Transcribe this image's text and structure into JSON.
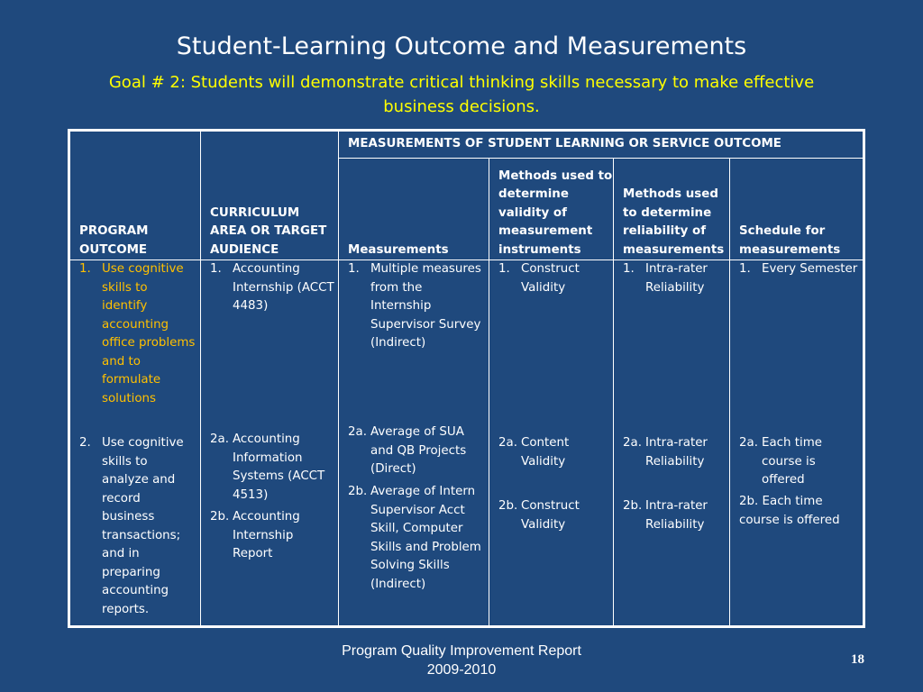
{
  "title": "Student-Learning Outcome and Measurements",
  "goal": "Goal # 2:  Students will demonstrate critical thinking skills necessary to make effective business decisions.",
  "table": {
    "group_header": "MEASUREMENTS OF STUDENT LEARNING OR SERVICE OUTCOME",
    "col1_header": "PROGRAM OUTCOME",
    "col2_header": "CURRICULUM AREA OR TARGET AUDIENCE",
    "col3_header": "Measurements",
    "col4_header": "Methods used to determine validity of measurement instruments",
    "col5_header": "Methods used to determine reliability of measurements",
    "col6_header": "Schedule for measurements",
    "outcome1": {
      "num": "1.",
      "text": "Use cognitive skills to identify accounting office problems and to formulate solutions"
    },
    "outcome2": {
      "num": "2.",
      "text": "Use cognitive skills to analyze and record business transactions; and in preparing accounting reports."
    },
    "curr1": {
      "num": "1.",
      "text": "Accounting Internship (ACCT 4483)"
    },
    "curr2a": {
      "num": "2a.",
      "text": "Accounting Information Systems (ACCT 4513)"
    },
    "curr2b": {
      "num": "2b.",
      "text": "Accounting Internship Report"
    },
    "meas1": {
      "num": "1.",
      "text": "Multiple measures from the Internship Supervisor Survey (Indirect)"
    },
    "meas2a": {
      "num": "2a.",
      "text": "Average  of SUA and QB Projects (Direct)"
    },
    "meas2b": {
      "num": "2b.",
      "text": "Average of Intern Supervisor  Acct Skill, Computer Skills and Problem Solving Skills (Indirect)"
    },
    "val1": {
      "num": "1.",
      "text": "Construct Validity"
    },
    "val2a": {
      "num": "2a.",
      "text": "Content Validity"
    },
    "val2b": {
      "num": "2b.",
      "text": "Construct Validity"
    },
    "rel1": {
      "num": "1.",
      "text": "Intra-rater Reliability"
    },
    "rel2a": {
      "num": "2a.",
      "text": "Intra-rater Reliability"
    },
    "rel2b": {
      "num": "2b.",
      "text": "Intra-rater Reliability"
    },
    "sched1": {
      "num": "1.",
      "text": "Every Semester"
    },
    "sched2a": {
      "num": "2a.",
      "text": "Each time course is offered"
    },
    "sched2b": "2b. Each time course is offered"
  },
  "footer": {
    "line1": "Program Quality Improvement Report",
    "line2": "2009-2010"
  },
  "page_number": "18",
  "colors": {
    "background": "#1f497d",
    "goal": "#ffff00",
    "outcome1": "#ffc000",
    "text": "#ffffff"
  }
}
